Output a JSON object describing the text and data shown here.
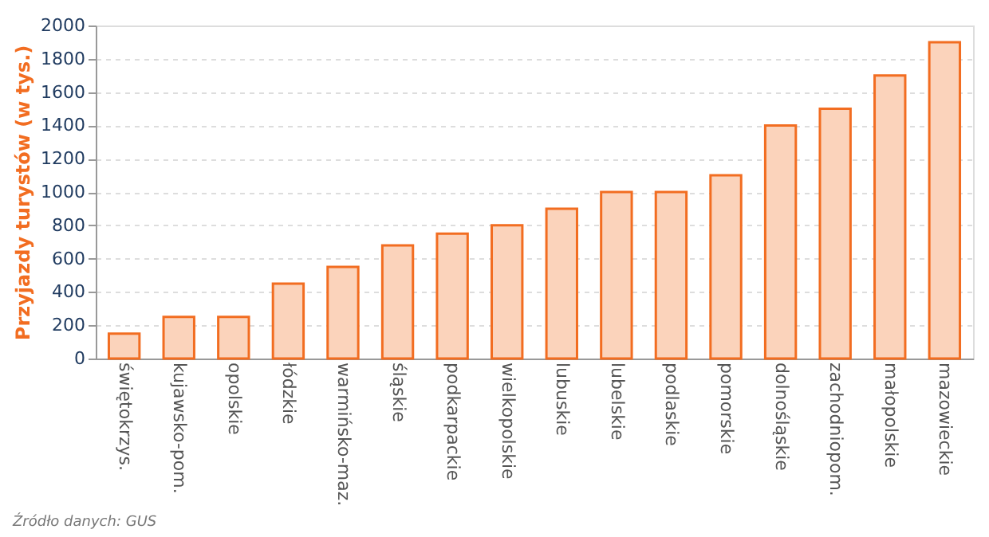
{
  "chart_data": {
    "type": "bar",
    "ylabel": "Przyjazdy turystów (w tys.)",
    "categories": [
      "świętokrzys.",
      "kujawsko-pom.",
      "opolskie",
      "łódzkie",
      "warmińsko-maz.",
      "śląskie",
      "podkarpackie",
      "wielkopolskie",
      "lubuskie",
      "lubelskie",
      "podlaskie",
      "pomorskie",
      "dolnośląskie",
      "zachodniopom.",
      "małopolskie",
      "mazowieckie"
    ],
    "values": [
      150,
      250,
      250,
      450,
      550,
      680,
      750,
      800,
      900,
      1000,
      1000,
      1100,
      1400,
      1500,
      1700,
      1900
    ],
    "color": "#f26d21",
    "ylim": [
      0,
      2000
    ],
    "yticks": [
      0,
      200,
      400,
      600,
      800,
      1000,
      1200,
      1400,
      1600,
      1800,
      2000
    ],
    "grid": "y",
    "annotations": [
      "Źródło danych: GUS"
    ]
  }
}
